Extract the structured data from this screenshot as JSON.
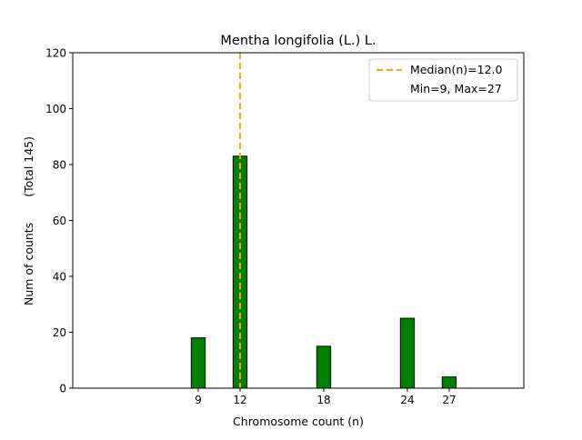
{
  "chart_data": {
    "type": "bar",
    "title": "Mentha longifolia (L.) L.",
    "xlabel": "Chromosome count (n)",
    "ylabel": "Num of counts",
    "ylabel_secondary": "(Total 145)",
    "x": [
      9,
      12,
      18,
      24,
      27
    ],
    "values": [
      18,
      83,
      15,
      25,
      4
    ],
    "xticks": [
      9,
      12,
      18,
      24,
      27
    ],
    "yticks": [
      0,
      20,
      40,
      60,
      80,
      100,
      120
    ],
    "xlim": [
      0,
      32.35
    ],
    "ylim": [
      0,
      120
    ],
    "bar_color": "#008000",
    "median": 12.0,
    "median_color": "#ffa500",
    "legend": {
      "placement": "top-right",
      "entries": [
        "Median(n)=12.0",
        "Min=9, Max=27"
      ]
    },
    "grid": false
  }
}
